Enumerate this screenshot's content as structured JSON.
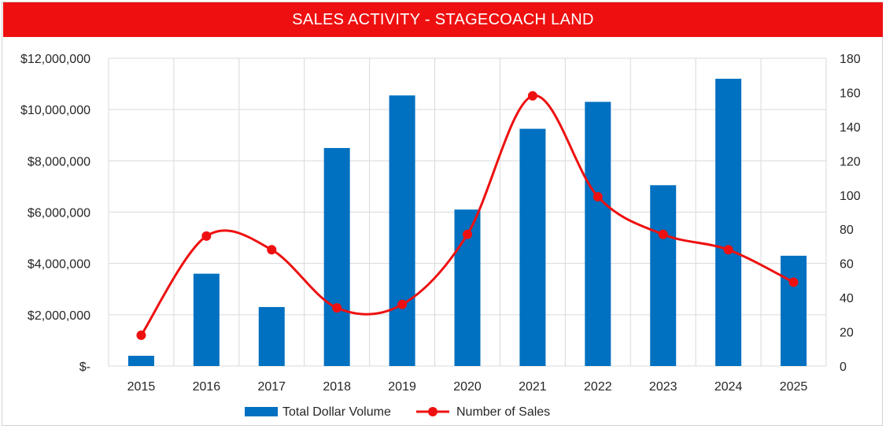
{
  "chart_data": {
    "type": "bar",
    "title": "SALES ACTIVITY - STAGECOACH LAND",
    "categories": [
      "2015",
      "2016",
      "2017",
      "2018",
      "2019",
      "2020",
      "2021",
      "2022",
      "2023",
      "2024",
      "2025"
    ],
    "series": [
      {
        "name": "Total Dollar Volume",
        "type": "bar",
        "axis": "left",
        "color": "#0070c0",
        "values": [
          400000,
          3600000,
          2300000,
          8500000,
          10550000,
          6100000,
          9250000,
          10300000,
          7050000,
          11200000,
          4300000
        ]
      },
      {
        "name": "Number of Sales",
        "type": "line",
        "axis": "right",
        "smooth": true,
        "color": "#ee1010",
        "values": [
          18,
          76,
          68,
          34,
          36,
          77,
          158,
          99,
          77,
          68,
          49
        ]
      }
    ],
    "y_left": {
      "min": 0,
      "max": 12000000,
      "ticks": [
        0,
        2000000,
        4000000,
        6000000,
        8000000,
        10000000,
        12000000
      ],
      "tick_labels": [
        "$-",
        "$2,000,000",
        "$4,000,000",
        "$6,000,000",
        "$8,000,000",
        "$10,000,000",
        "$12,000,000"
      ]
    },
    "y_right": {
      "min": 0,
      "max": 180,
      "ticks": [
        0,
        20,
        40,
        60,
        80,
        100,
        120,
        140,
        160,
        180
      ],
      "tick_labels": [
        "0",
        "20",
        "40",
        "60",
        "80",
        "100",
        "120",
        "140",
        "160",
        "180"
      ]
    },
    "grid": true,
    "legend_position": "bottom-center"
  }
}
